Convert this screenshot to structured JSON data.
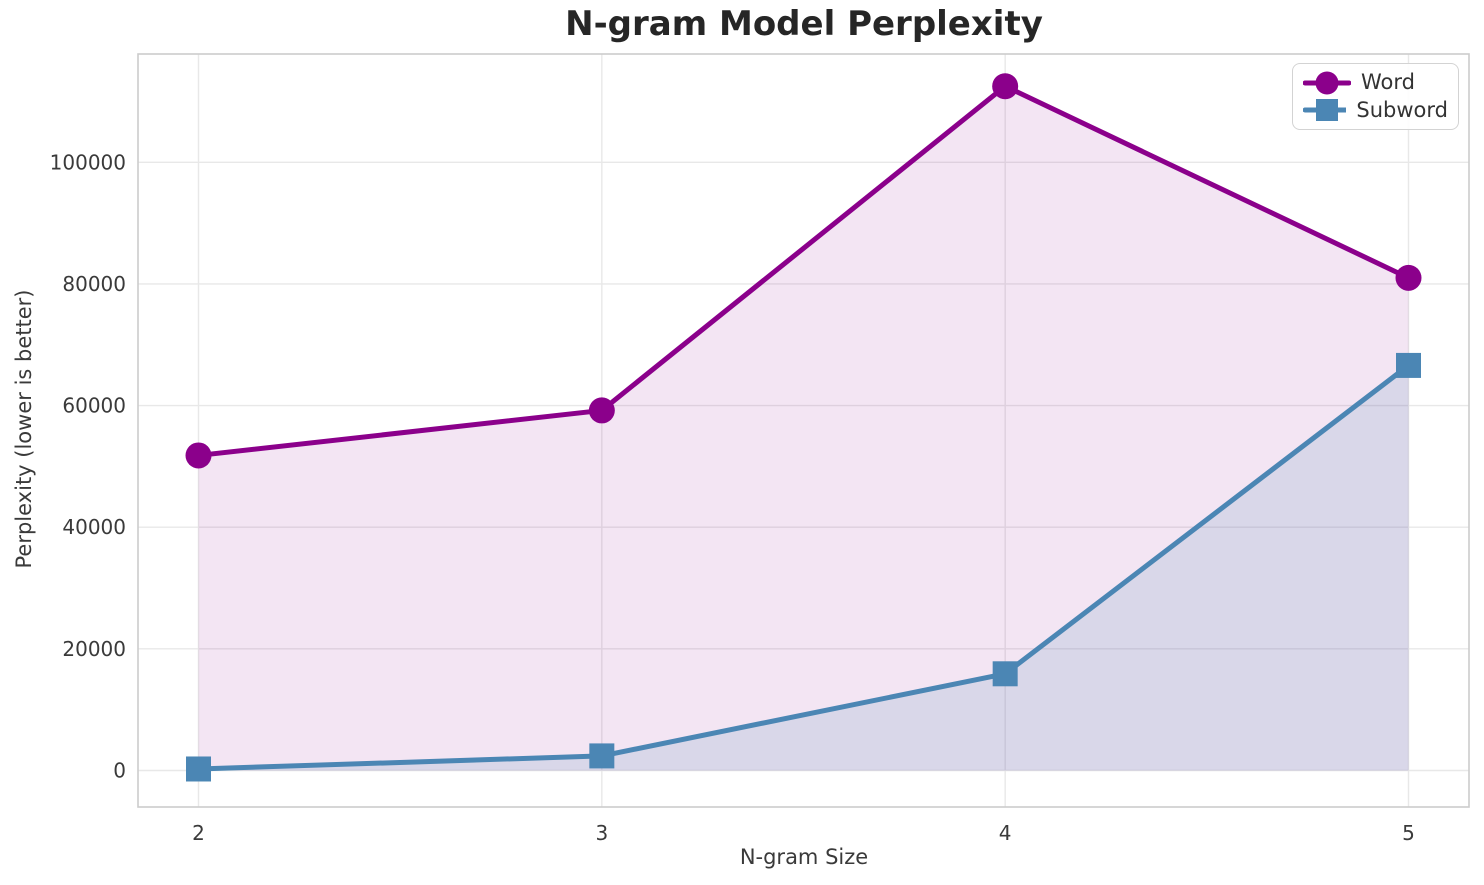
{
  "chart_data": {
    "type": "line",
    "title": "N-gram Model Perplexity",
    "xlabel": "N-gram Size",
    "ylabel": "Perplexity (lower is better)",
    "x": [
      2,
      3,
      4,
      5
    ],
    "xticks": [
      "2",
      "3",
      "4",
      "5"
    ],
    "yticks": [
      0,
      20000,
      40000,
      60000,
      80000,
      100000
    ],
    "xlim": [
      1.85,
      5.15
    ],
    "ylim": [
      -6000,
      117800
    ],
    "grid": true,
    "legend_position": "upper right",
    "fill_baseline": 0,
    "series": [
      {
        "name": "Word",
        "marker": "circle",
        "color": "#8B008B",
        "fill_opacity": 0.1,
        "values": [
          51800,
          59200,
          112500,
          81000
        ]
      },
      {
        "name": "Subword",
        "marker": "square",
        "color": "#4B86B4",
        "fill_opacity": 0.15,
        "values": [
          250,
          2400,
          15900,
          66600
        ]
      }
    ],
    "style": {
      "background": "#FFFFFF",
      "grid_color": "#E8E8E8",
      "spine_color": "#CCCCCC",
      "tick_text_color": "#3A3A3A",
      "title_color": "#262626",
      "legend_border_color": "#D3D3D3",
      "legend_text_color": "#333333"
    }
  }
}
